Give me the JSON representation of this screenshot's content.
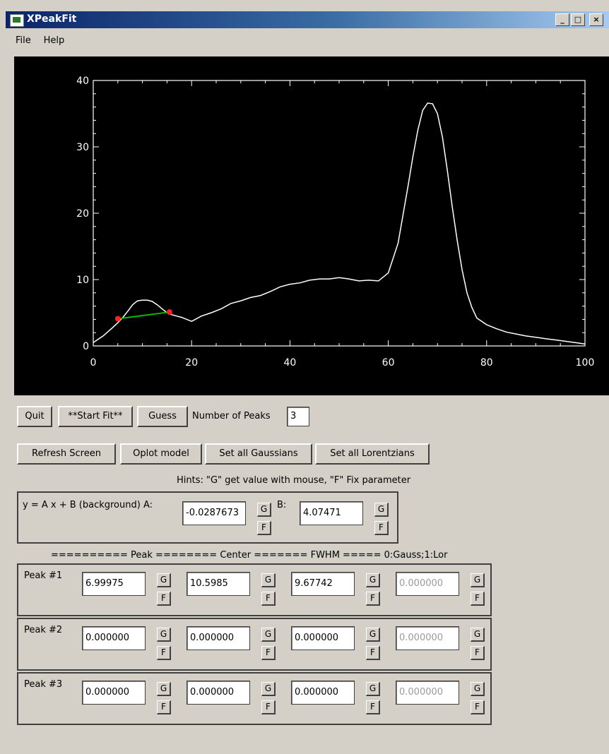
{
  "window": {
    "title": "XPeakFit",
    "minimize": "_",
    "maximize": "□",
    "close": "×"
  },
  "menu": [
    "File",
    "Help"
  ],
  "chart_data": {
    "type": "line",
    "xlim": [
      0,
      100
    ],
    "ylim": [
      0,
      40
    ],
    "xticks": [
      "0",
      "20",
      "40",
      "60",
      "80",
      "100"
    ],
    "yticks": [
      "0",
      "10",
      "20",
      "30",
      "40"
    ],
    "x": [
      0,
      2,
      4,
      5,
      6,
      7,
      8,
      9,
      10,
      11,
      12,
      13,
      14,
      15,
      16,
      18,
      20,
      22,
      24,
      26,
      28,
      30,
      32,
      34,
      36,
      38,
      40,
      42,
      44,
      46,
      48,
      50,
      52,
      54,
      56,
      58,
      60,
      62,
      64,
      65,
      66,
      67,
      68,
      69,
      70,
      71,
      72,
      73,
      74,
      75,
      76,
      77,
      78,
      80,
      82,
      84,
      86,
      88,
      90,
      92,
      94,
      96,
      98,
      100
    ],
    "y": [
      0.5,
      1.5,
      2.8,
      3.5,
      4.3,
      5.2,
      6.2,
      6.8,
      6.9,
      6.9,
      6.7,
      6.2,
      5.6,
      5.0,
      4.7,
      4.3,
      3.7,
      4.5,
      5.0,
      5.6,
      6.4,
      6.8,
      7.3,
      7.6,
      8.2,
      8.9,
      9.3,
      9.5,
      9.9,
      10.1,
      10.1,
      10.3,
      10.1,
      9.8,
      9.9,
      9.8,
      11.0,
      15.5,
      24.0,
      28.5,
      32.5,
      35.5,
      36.6,
      36.5,
      35.0,
      31.5,
      26.5,
      21.0,
      16.0,
      11.5,
      8.0,
      5.8,
      4.2,
      3.2,
      2.6,
      2.1,
      1.8,
      1.5,
      1.3,
      1.1,
      0.9,
      0.7,
      0.5,
      0.3
    ],
    "background_line": {
      "x": [
        5,
        15.5
      ],
      "y": [
        4.1,
        5.1
      ],
      "color": "#00c000",
      "marker_color": "#ff2020"
    }
  },
  "controls": {
    "quit": "Quit",
    "start_fit": "**Start Fit**",
    "guess": "Guess",
    "num_peaks_label": "Number of Peaks",
    "num_peaks_value": "3",
    "refresh": "Refresh Screen",
    "oplot": "Oplot model",
    "set_gauss": "Set all Gaussians",
    "set_lor": "Set all Lorentzians"
  },
  "hints": "Hints: \"G\" get value with mouse, \"F\" Fix parameter",
  "background": {
    "label": "y = A x + B (background) A:",
    "a_value": "-0.0287673",
    "b_label": "B:",
    "b_value": "4.07471"
  },
  "columns_header": "========== Peak ======== Center ======= FWHM ===== 0:Gauss;1:Lor",
  "gf": {
    "g": "G",
    "f": "F"
  },
  "peaks": [
    {
      "label": "Peak #1",
      "values": [
        "6.99975",
        "10.5985",
        "9.67742",
        "0.000000"
      ]
    },
    {
      "label": "Peak #2",
      "values": [
        "0.000000",
        "0.000000",
        "0.000000",
        "0.000000"
      ]
    },
    {
      "label": "Peak #3",
      "values": [
        "0.000000",
        "0.000000",
        "0.000000",
        "0.000000"
      ]
    }
  ]
}
